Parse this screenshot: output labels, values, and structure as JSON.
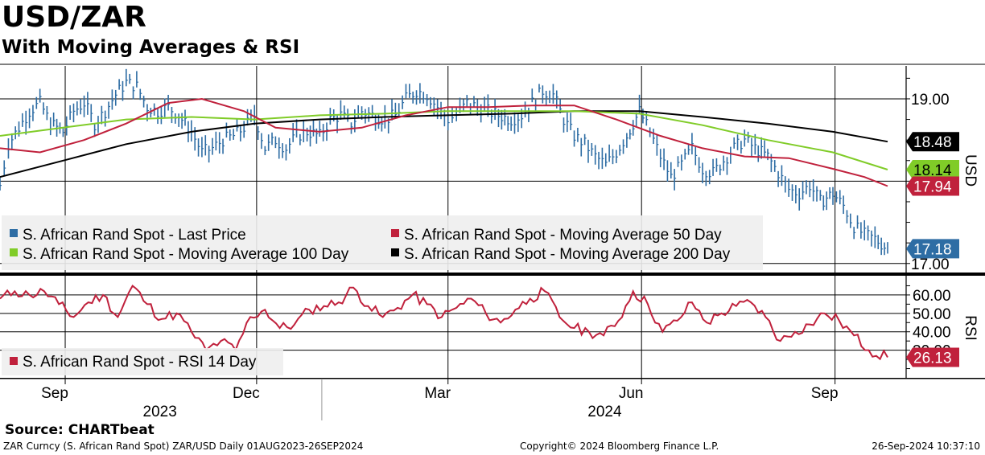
{
  "header": {
    "title": "USD/ZAR",
    "subtitle": "With Moving Averages & RSI"
  },
  "footer": {
    "source": "Source: CHARTbeat",
    "left": "ZAR Curncy (S. African Rand Spot) ZAR/USD  Daily 01AUG2023-26SEP2024",
    "center": "Copyright© 2024 Bloomberg Finance L.P.",
    "right": "26-Sep-2024 10:37:10"
  },
  "colors": {
    "price": "#2e6da4",
    "ma50": "#c0213c",
    "ma100": "#80cc28",
    "ma200": "#000000",
    "rsi": "#c0213c",
    "grid": "#000000",
    "legend_bg": "#eeeeee"
  },
  "chart_data": [
    {
      "type": "line",
      "panel": "price",
      "ylabel": "USD",
      "ylim": [
        16.9,
        19.4
      ],
      "yticks": [
        "19.00",
        "17.00"
      ],
      "xlim": [
        "2023-08-01",
        "2024-09-26"
      ],
      "x_month_ticks": [
        {
          "date": "2023-09-01",
          "label": "Sep"
        },
        {
          "date": "2023-12-01",
          "label": "Dec"
        },
        {
          "date": "2024-03-01",
          "label": "Mar"
        },
        {
          "date": "2024-06-01",
          "label": "Jun"
        },
        {
          "date": "2024-09-01",
          "label": "Sep"
        }
      ],
      "x_year_labels": [
        {
          "label": "2023",
          "from": "2023-08-01",
          "to": "2023-12-31"
        },
        {
          "label": "2024",
          "from": "2024-01-01",
          "to": "2024-09-26"
        }
      ],
      "series": [
        {
          "name": "S. African Rand Spot - Last Price",
          "style": "bars",
          "last_label": "17.18",
          "points": [
            [
              "2023-08-01",
              17.95
            ],
            [
              "2023-08-05",
              18.45
            ],
            [
              "2023-08-10",
              18.65
            ],
            [
              "2023-08-15",
              18.85
            ],
            [
              "2023-08-20",
              18.95
            ],
            [
              "2023-08-25",
              18.7
            ],
            [
              "2023-08-31",
              18.6
            ],
            [
              "2023-09-05",
              18.85
            ],
            [
              "2023-09-10",
              18.95
            ],
            [
              "2023-09-15",
              18.7
            ],
            [
              "2023-09-20",
              18.85
            ],
            [
              "2023-09-25",
              19.05
            ],
            [
              "2023-09-30",
              19.2
            ],
            [
              "2023-10-05",
              19.15
            ],
            [
              "2023-10-10",
              18.9
            ],
            [
              "2023-10-15",
              18.85
            ],
            [
              "2023-10-20",
              18.9
            ],
            [
              "2023-10-25",
              18.8
            ],
            [
              "2023-10-31",
              18.6
            ],
            [
              "2023-11-05",
              18.35
            ],
            [
              "2023-11-10",
              18.4
            ],
            [
              "2023-11-15",
              18.5
            ],
            [
              "2023-11-20",
              18.55
            ],
            [
              "2023-11-25",
              18.65
            ],
            [
              "2023-11-30",
              18.8
            ],
            [
              "2023-12-05",
              18.4
            ],
            [
              "2023-12-10",
              18.5
            ],
            [
              "2023-12-15",
              18.4
            ],
            [
              "2023-12-20",
              18.55
            ],
            [
              "2023-12-25",
              18.6
            ],
            [
              "2023-12-31",
              18.55
            ],
            [
              "2024-01-05",
              18.75
            ],
            [
              "2024-01-10",
              18.8
            ],
            [
              "2024-01-15",
              18.7
            ],
            [
              "2024-01-20",
              18.85
            ],
            [
              "2024-01-25",
              18.8
            ],
            [
              "2024-01-31",
              18.75
            ],
            [
              "2024-02-05",
              18.8
            ],
            [
              "2024-02-10",
              19.0
            ],
            [
              "2024-02-15",
              19.1
            ],
            [
              "2024-02-20",
              19.05
            ],
            [
              "2024-02-25",
              18.9
            ],
            [
              "2024-03-01",
              18.75
            ],
            [
              "2024-03-05",
              18.8
            ],
            [
              "2024-03-10",
              18.95
            ],
            [
              "2024-03-15",
              18.9
            ],
            [
              "2024-03-20",
              18.85
            ],
            [
              "2024-03-25",
              18.8
            ],
            [
              "2024-03-31",
              18.75
            ],
            [
              "2024-04-05",
              18.8
            ],
            [
              "2024-04-10",
              18.95
            ],
            [
              "2024-04-15",
              19.1
            ],
            [
              "2024-04-20",
              19.05
            ],
            [
              "2024-04-25",
              18.75
            ],
            [
              "2024-04-30",
              18.55
            ],
            [
              "2024-05-05",
              18.45
            ],
            [
              "2024-05-10",
              18.3
            ],
            [
              "2024-05-15",
              18.2
            ],
            [
              "2024-05-20",
              18.35
            ],
            [
              "2024-05-25",
              18.55
            ],
            [
              "2024-05-31",
              18.85
            ],
            [
              "2024-06-05",
              18.6
            ],
            [
              "2024-06-10",
              18.3
            ],
            [
              "2024-06-15",
              18.05
            ],
            [
              "2024-06-20",
              18.2
            ],
            [
              "2024-06-25",
              18.4
            ],
            [
              "2024-06-30",
              18.15
            ],
            [
              "2024-07-05",
              18.1
            ],
            [
              "2024-07-10",
              18.25
            ],
            [
              "2024-07-15",
              18.4
            ],
            [
              "2024-07-20",
              18.5
            ],
            [
              "2024-07-25",
              18.4
            ],
            [
              "2024-07-31",
              18.3
            ],
            [
              "2024-08-05",
              18.1
            ],
            [
              "2024-08-10",
              17.9
            ],
            [
              "2024-08-15",
              17.85
            ],
            [
              "2024-08-20",
              17.95
            ],
            [
              "2024-08-25",
              17.75
            ],
            [
              "2024-08-31",
              17.85
            ],
            [
              "2024-09-05",
              17.7
            ],
            [
              "2024-09-10",
              17.45
            ],
            [
              "2024-09-15",
              17.35
            ],
            [
              "2024-09-20",
              17.3
            ],
            [
              "2024-09-26",
              17.18
            ]
          ]
        },
        {
          "name": "S. African Rand Spot - Moving Average 50 Day",
          "style": "line",
          "last_label": "17.94",
          "points": [
            [
              "2023-08-01",
              18.4
            ],
            [
              "2023-08-20",
              18.35
            ],
            [
              "2023-09-10",
              18.5
            ],
            [
              "2023-09-30",
              18.7
            ],
            [
              "2023-10-20",
              18.95
            ],
            [
              "2023-11-05",
              19.0
            ],
            [
              "2023-11-25",
              18.85
            ],
            [
              "2023-12-10",
              18.65
            ],
            [
              "2023-12-31",
              18.6
            ],
            [
              "2024-01-20",
              18.65
            ],
            [
              "2024-02-10",
              18.8
            ],
            [
              "2024-03-01",
              18.9
            ],
            [
              "2024-03-20",
              18.9
            ],
            [
              "2024-04-10",
              18.92
            ],
            [
              "2024-04-30",
              18.92
            ],
            [
              "2024-05-20",
              18.75
            ],
            [
              "2024-06-10",
              18.55
            ],
            [
              "2024-06-30",
              18.4
            ],
            [
              "2024-07-20",
              18.3
            ],
            [
              "2024-08-10",
              18.28
            ],
            [
              "2024-08-31",
              18.15
            ],
            [
              "2024-09-15",
              18.05
            ],
            [
              "2024-09-26",
              17.94
            ]
          ]
        },
        {
          "name": "S. African Rand Spot - Moving Average 100 Day",
          "style": "line",
          "last_label": "18.14",
          "points": [
            [
              "2023-08-01",
              18.55
            ],
            [
              "2023-08-31",
              18.65
            ],
            [
              "2023-09-30",
              18.75
            ],
            [
              "2023-10-31",
              18.78
            ],
            [
              "2023-11-30",
              18.75
            ],
            [
              "2023-12-31",
              18.8
            ],
            [
              "2024-01-31",
              18.82
            ],
            [
              "2024-02-29",
              18.85
            ],
            [
              "2024-03-31",
              18.85
            ],
            [
              "2024-04-30",
              18.85
            ],
            [
              "2024-05-31",
              18.82
            ],
            [
              "2024-06-30",
              18.68
            ],
            [
              "2024-07-31",
              18.5
            ],
            [
              "2024-08-31",
              18.35
            ],
            [
              "2024-09-26",
              18.14
            ]
          ]
        },
        {
          "name": "S. African Rand Spot - Moving Average 200 Day",
          "style": "line",
          "last_label": "18.48",
          "points": [
            [
              "2023-08-01",
              18.05
            ],
            [
              "2023-08-31",
              18.25
            ],
            [
              "2023-09-30",
              18.45
            ],
            [
              "2023-10-31",
              18.6
            ],
            [
              "2023-11-30",
              18.7
            ],
            [
              "2023-12-31",
              18.75
            ],
            [
              "2024-01-31",
              18.78
            ],
            [
              "2024-02-29",
              18.8
            ],
            [
              "2024-03-31",
              18.82
            ],
            [
              "2024-04-30",
              18.85
            ],
            [
              "2024-05-31",
              18.85
            ],
            [
              "2024-06-30",
              18.78
            ],
            [
              "2024-07-31",
              18.7
            ],
            [
              "2024-08-31",
              18.6
            ],
            [
              "2024-09-26",
              18.48
            ]
          ]
        }
      ]
    },
    {
      "type": "line",
      "panel": "rsi",
      "ylabel": "RSI",
      "ylim": [
        15,
        70
      ],
      "yticks": [
        "60.00",
        "50.00",
        "40.00",
        "30.00"
      ],
      "series": [
        {
          "name": "S. African Rand Spot - RSI 14 Day",
          "style": "line",
          "last_label": "26.13",
          "points": [
            [
              "2023-08-01",
              58
            ],
            [
              "2023-08-08",
              62
            ],
            [
              "2023-08-15",
              60
            ],
            [
              "2023-08-22",
              62
            ],
            [
              "2023-08-29",
              55
            ],
            [
              "2023-09-05",
              48
            ],
            [
              "2023-09-12",
              56
            ],
            [
              "2023-09-19",
              60
            ],
            [
              "2023-09-26",
              48
            ],
            [
              "2023-10-03",
              65
            ],
            [
              "2023-10-10",
              55
            ],
            [
              "2023-10-17",
              47
            ],
            [
              "2023-10-24",
              50
            ],
            [
              "2023-10-31",
              40
            ],
            [
              "2023-11-07",
              30
            ],
            [
              "2023-11-14",
              35
            ],
            [
              "2023-11-21",
              30
            ],
            [
              "2023-11-28",
              48
            ],
            [
              "2023-12-05",
              52
            ],
            [
              "2023-12-12",
              42
            ],
            [
              "2023-12-19",
              44
            ],
            [
              "2023-12-26",
              52
            ],
            [
              "2024-01-02",
              54
            ],
            [
              "2024-01-09",
              56
            ],
            [
              "2024-01-16",
              64
            ],
            [
              "2024-01-23",
              54
            ],
            [
              "2024-01-30",
              48
            ],
            [
              "2024-02-06",
              53
            ],
            [
              "2024-02-13",
              60
            ],
            [
              "2024-02-20",
              55
            ],
            [
              "2024-02-27",
              48
            ],
            [
              "2024-03-05",
              53
            ],
            [
              "2024-03-12",
              58
            ],
            [
              "2024-03-19",
              50
            ],
            [
              "2024-03-26",
              45
            ],
            [
              "2024-04-02",
              52
            ],
            [
              "2024-04-09",
              58
            ],
            [
              "2024-04-16",
              62
            ],
            [
              "2024-04-23",
              48
            ],
            [
              "2024-04-30",
              42
            ],
            [
              "2024-05-07",
              40
            ],
            [
              "2024-05-14",
              38
            ],
            [
              "2024-05-21",
              46
            ],
            [
              "2024-05-28",
              62
            ],
            [
              "2024-06-04",
              55
            ],
            [
              "2024-06-11",
              40
            ],
            [
              "2024-06-18",
              46
            ],
            [
              "2024-06-25",
              56
            ],
            [
              "2024-07-02",
              45
            ],
            [
              "2024-07-09",
              50
            ],
            [
              "2024-07-16",
              54
            ],
            [
              "2024-07-23",
              56
            ],
            [
              "2024-07-30",
              48
            ],
            [
              "2024-08-06",
              35
            ],
            [
              "2024-08-13",
              40
            ],
            [
              "2024-08-20",
              44
            ],
            [
              "2024-08-27",
              50
            ],
            [
              "2024-09-03",
              46
            ],
            [
              "2024-09-10",
              38
            ],
            [
              "2024-09-17",
              30
            ],
            [
              "2024-09-26",
              26.13
            ]
          ]
        }
      ]
    }
  ]
}
